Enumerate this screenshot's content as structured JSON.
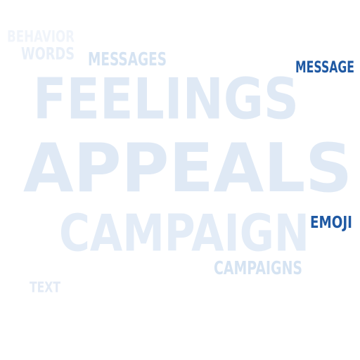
{
  "words": [
    {
      "text": "BEHAVIOR",
      "color": "#f0f4fa"
    },
    {
      "text": "WORDS",
      "color": "#e8eff8"
    },
    {
      "text": "MESSAGES",
      "color": "#d5e3f2"
    },
    {
      "text": "MESSAGE",
      "color": "#1f59a3"
    },
    {
      "text": "FEELINGS",
      "color": "#dfe9f5"
    },
    {
      "text": "APPEALS",
      "color": "#dfe9f5"
    },
    {
      "text": "CAMPAIGN",
      "color": "#e3ecf7"
    },
    {
      "text": "EMOJI",
      "color": "#1f59a3"
    },
    {
      "text": "CAMPAIGNS",
      "color": "#d5e3f2"
    },
    {
      "text": "TEXT",
      "color": "#e2eaf5"
    }
  ]
}
